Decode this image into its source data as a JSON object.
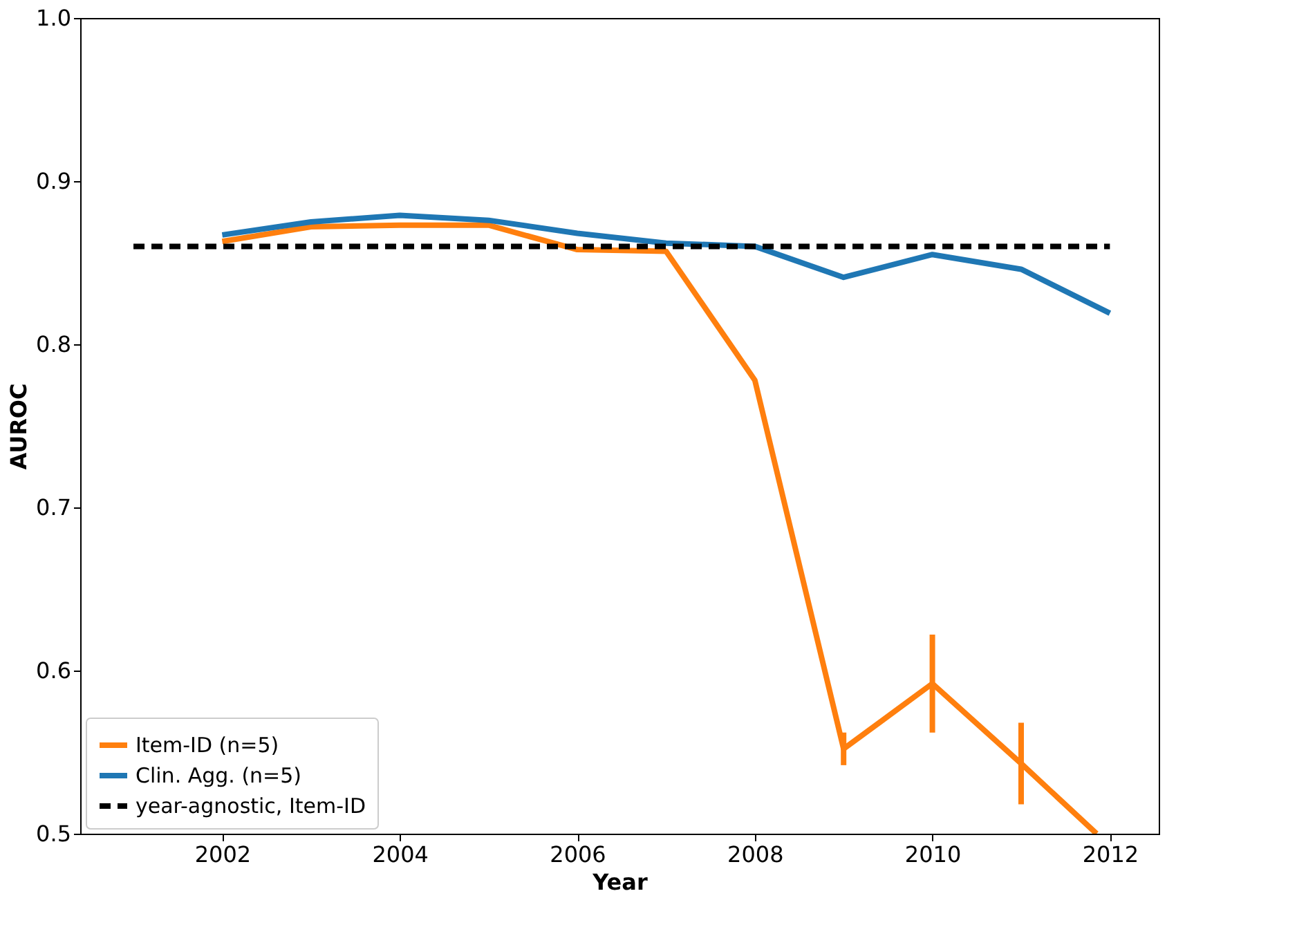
{
  "chart_data": {
    "type": "line",
    "xlabel": "Year",
    "ylabel": "AUROC",
    "x": [
      2002,
      2003,
      2004,
      2005,
      2006,
      2007,
      2008,
      2009,
      2010,
      2011,
      2012
    ],
    "series": [
      {
        "name": "Item-ID (n=5)",
        "color": "#ff7f0e",
        "line_style": "solid",
        "x": [
          2002,
          2003,
          2004,
          2005,
          2006,
          2007,
          2008,
          2009,
          2010,
          2011,
          2011.85
        ],
        "values": [
          0.863,
          0.872,
          0.873,
          0.873,
          0.858,
          0.857,
          0.778,
          0.552,
          0.592,
          0.543,
          0.5
        ],
        "errors": [
          null,
          null,
          null,
          null,
          null,
          null,
          null,
          0.01,
          0.03,
          0.025,
          null
        ]
      },
      {
        "name": "Clin. Agg. (n=5)",
        "color": "#1f77b4",
        "line_style": "solid",
        "values": [
          0.867,
          0.875,
          0.879,
          0.876,
          0.868,
          0.862,
          0.86,
          0.841,
          0.855,
          0.846,
          0.819
        ]
      },
      {
        "name": "year-agnostic, Item-ID",
        "color": "#000000",
        "line_style": "dashed",
        "x": [
          2001,
          2012
        ],
        "values": [
          0.86,
          0.86
        ]
      }
    ],
    "xlim": [
      2000.4,
      2012.55
    ],
    "ylim": [
      0.5,
      1.0
    ],
    "xticks": [
      2002,
      2004,
      2006,
      2008,
      2010,
      2012
    ],
    "yticks": [
      {
        "value": 0.5,
        "label": "0.5"
      },
      {
        "value": 0.6,
        "label": "0.6"
      },
      {
        "value": 0.7,
        "label": "0.7"
      },
      {
        "value": 0.8,
        "label": "0.8"
      },
      {
        "value": 0.9,
        "label": "0.9"
      },
      {
        "value": 1.0,
        "label": "1.0"
      }
    ],
    "grid": false,
    "legend": "bottom left",
    "marker": "none"
  }
}
